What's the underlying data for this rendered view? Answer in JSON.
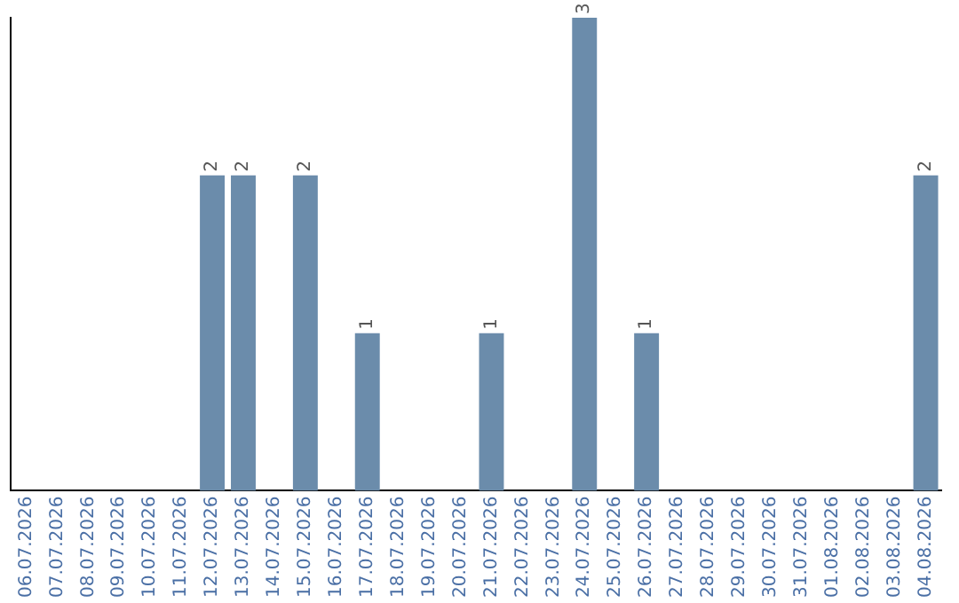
{
  "chart_data": {
    "type": "bar",
    "categories": [
      "06.07.2026",
      "07.07.2026",
      "08.07.2026",
      "09.07.2026",
      "10.07.2026",
      "11.07.2026",
      "12.07.2026",
      "13.07.2026",
      "14.07.2026",
      "15.07.2026",
      "16.07.2026",
      "17.07.2026",
      "18.07.2026",
      "19.07.2026",
      "20.07.2026",
      "21.07.2026",
      "22.07.2026",
      "23.07.2026",
      "24.07.2026",
      "25.07.2026",
      "26.07.2026",
      "27.07.2026",
      "28.07.2026",
      "29.07.2026",
      "30.07.2026",
      "31.07.2026",
      "01.08.2026",
      "02.08.2026",
      "03.08.2026",
      "04.08.2026"
    ],
    "values": [
      0,
      0,
      0,
      0,
      0,
      0,
      2,
      2,
      0,
      2,
      0,
      1,
      0,
      0,
      0,
      1,
      0,
      0,
      3,
      0,
      1,
      0,
      0,
      0,
      0,
      0,
      0,
      0,
      0,
      2
    ],
    "value_labels": [
      null,
      null,
      null,
      null,
      null,
      null,
      "2",
      "2",
      null,
      "2",
      null,
      "1",
      null,
      null,
      null,
      "1",
      null,
      null,
      "3",
      null,
      "1",
      null,
      null,
      null,
      null,
      null,
      null,
      null,
      null,
      "2"
    ],
    "color": "#6b8cab",
    "grid": false,
    "legend": false,
    "tick_labels": "x"
  }
}
